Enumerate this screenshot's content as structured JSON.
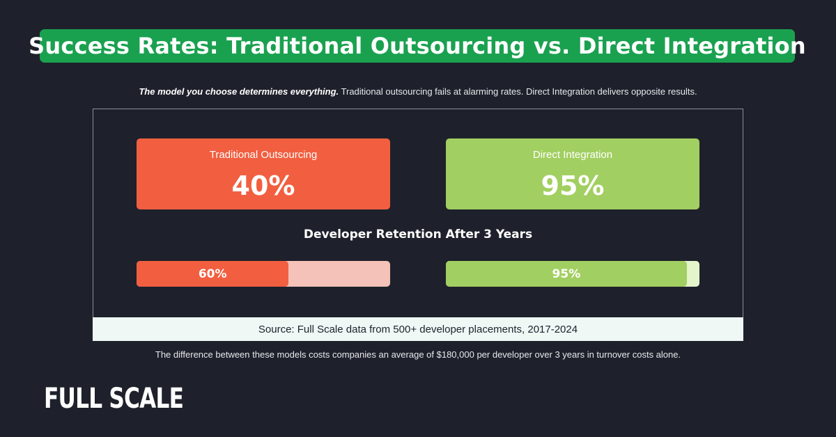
{
  "header": {
    "title": "Success Rates: Traditional Outsourcing vs. Direct Integration",
    "subtitle_emphasis": "The model you choose determines everything.",
    "subtitle_rest": " Traditional outsourcing fails at alarming rates. Direct Integration delivers opposite results."
  },
  "cards": [
    {
      "label": "Traditional Outsourcing",
      "value": "40%",
      "color": "#f15f40"
    },
    {
      "label": "Direct Integration",
      "value": "95%",
      "color": "#a2cf61"
    }
  ],
  "retention": {
    "title": "Developer Retention After 3 Years",
    "bars": [
      {
        "label": "60%",
        "value": 60,
        "fill": "#f15f40",
        "track": "#f4c2b8"
      },
      {
        "label": "95%",
        "value": 95,
        "fill": "#a2cf61",
        "track": "#e4f5cc"
      }
    ]
  },
  "source": "Source: Full Scale data from 500+ developer placements, 2017-2024",
  "footnote": "The difference between these models costs companies an average of $180,000 per developer over 3 years in turnover costs alone.",
  "brand": {
    "logo_text": "FULL SCALE"
  },
  "colors": {
    "background": "#1e212b",
    "title_bar": "#1aa150",
    "traditional": "#f15f40",
    "direct": "#a2cf61"
  },
  "chart_data": [
    {
      "type": "bar",
      "title": "Success Rates",
      "categories": [
        "Traditional Outsourcing",
        "Direct Integration"
      ],
      "values": [
        40,
        95
      ],
      "unit": "%",
      "ylim": [
        0,
        100
      ]
    },
    {
      "type": "bar",
      "title": "Developer Retention After 3 Years",
      "orientation": "horizontal",
      "categories": [
        "Traditional Outsourcing",
        "Direct Integration"
      ],
      "values": [
        60,
        95
      ],
      "unit": "%",
      "xlim": [
        0,
        100
      ]
    }
  ]
}
